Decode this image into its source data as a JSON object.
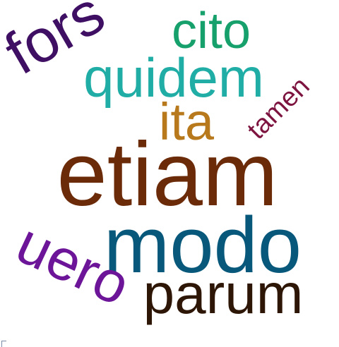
{
  "words": [
    {
      "text": "etiam",
      "color": "#6b2a08"
    },
    {
      "text": "modo",
      "color": "#07587a"
    },
    {
      "text": "quidem",
      "color": "#1fada6"
    },
    {
      "text": "cito",
      "color": "#16a06b"
    },
    {
      "text": "fors",
      "color": "#3f0f63"
    },
    {
      "text": "ita",
      "color": "#b7791c"
    },
    {
      "text": "tamen",
      "color": "#7d1440"
    },
    {
      "text": "uero",
      "color": "#6c1598"
    },
    {
      "text": "parum",
      "color": "#2e1606"
    }
  ]
}
